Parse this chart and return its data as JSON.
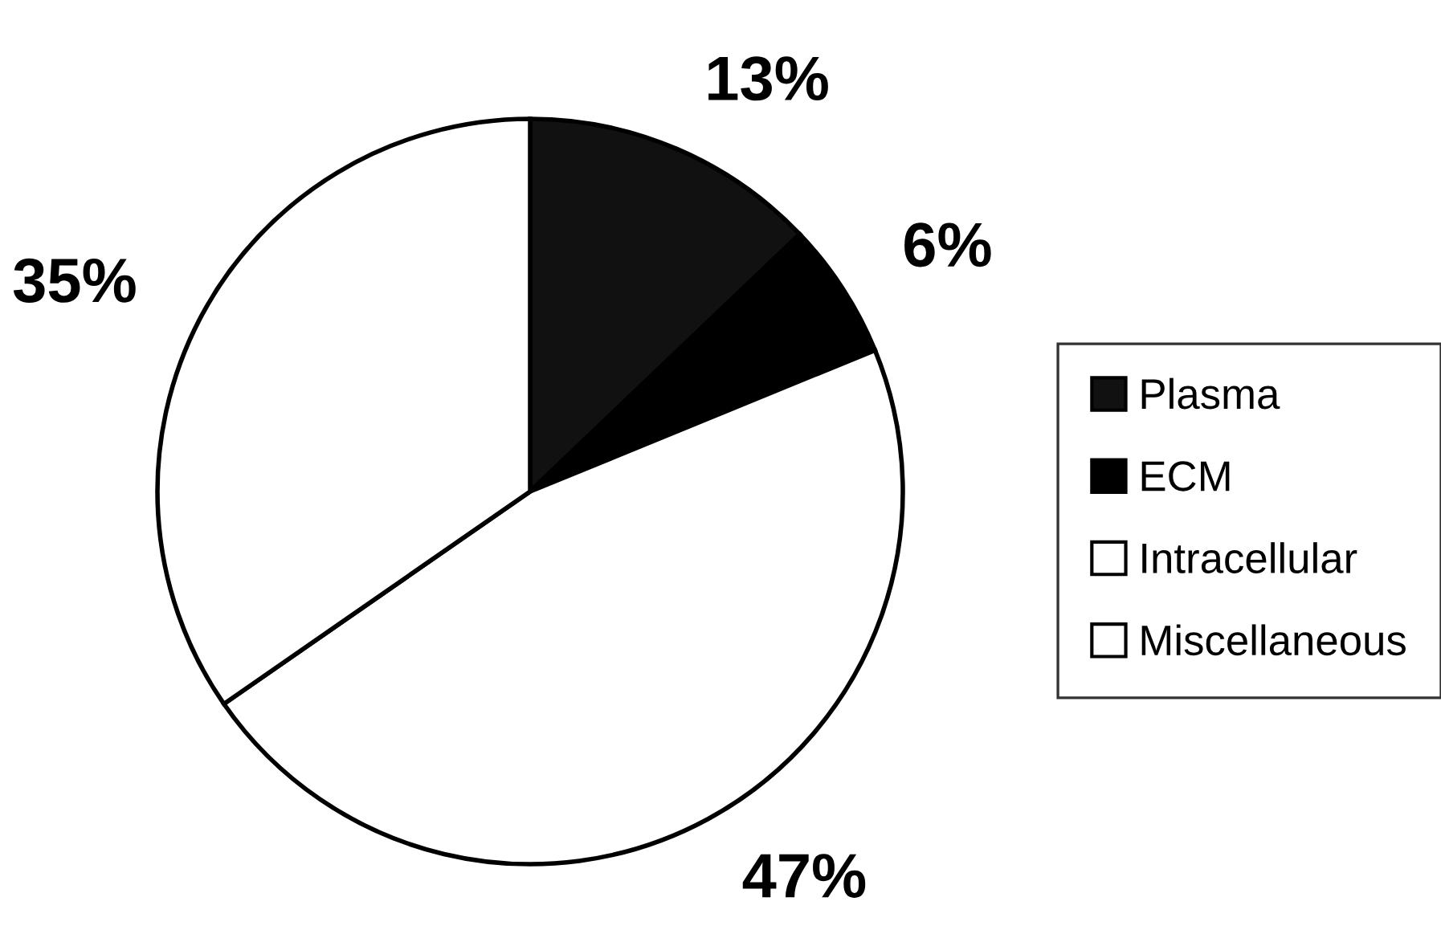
{
  "chart_data": {
    "type": "pie",
    "categories": [
      "Plasma",
      "ECM",
      "Intracellular",
      "Miscellaneous"
    ],
    "values": [
      13,
      6,
      47,
      35
    ],
    "colors": [
      "#111111",
      "#000000",
      "#ffffff",
      "#ffffff"
    ],
    "value_labels": [
      "13%",
      "6%",
      "47%",
      "35%"
    ],
    "legend": "right"
  }
}
